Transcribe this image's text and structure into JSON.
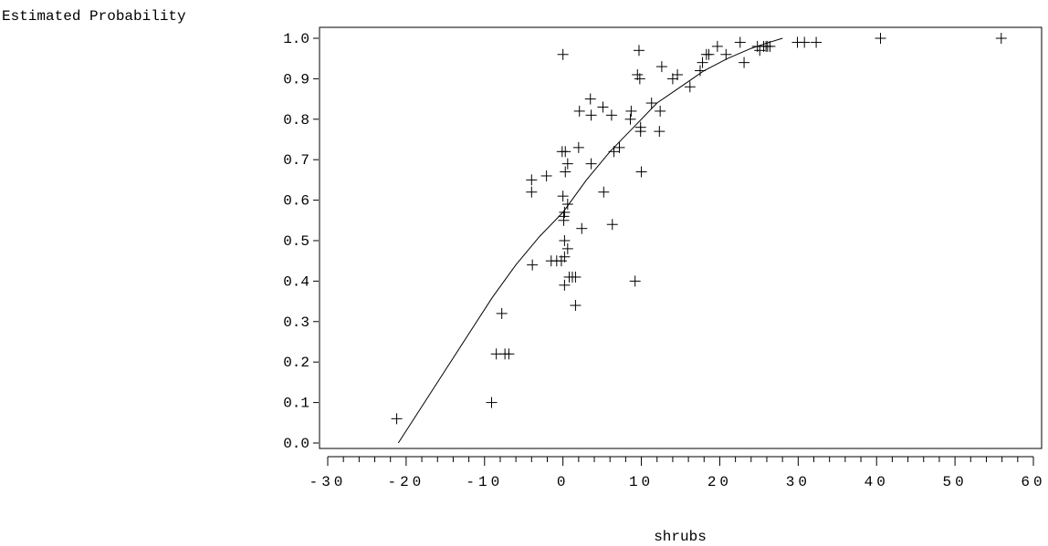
{
  "chart_data": {
    "type": "scatter",
    "title": "",
    "xlabel": "shrubs",
    "ylabel": "Estimated Probability",
    "xlim": [
      -30,
      60
    ],
    "ylim": [
      0.0,
      1.0
    ],
    "x_ticks": [
      -30,
      -20,
      -10,
      0,
      10,
      20,
      30,
      40,
      50,
      60
    ],
    "x_tick_labels": [
      "-30",
      "-20",
      "-10",
      "0",
      "10",
      "20",
      "30",
      "40",
      "50",
      "60"
    ],
    "x_minor_step": 2,
    "y_ticks": [
      0.0,
      0.1,
      0.2,
      0.3,
      0.4,
      0.5,
      0.6,
      0.7,
      0.8,
      0.9,
      1.0
    ],
    "y_tick_labels": [
      "0.0",
      "0.1",
      "0.2",
      "0.3",
      "0.4",
      "0.5",
      "0.6",
      "0.7",
      "0.8",
      "0.9",
      "1.0"
    ],
    "grid": false,
    "legend": "none",
    "colors": {
      "marks": "#000000",
      "background": "#ffffff"
    },
    "series": [
      {
        "kind": "points",
        "marker": "plus",
        "points": [
          [
            -21.2,
            0.06
          ],
          [
            -9.1,
            0.1
          ],
          [
            -8.5,
            0.22
          ],
          [
            -7.8,
            0.32
          ],
          [
            -7.4,
            0.22
          ],
          [
            -6.9,
            0.22
          ],
          [
            -4.0,
            0.62
          ],
          [
            -4.0,
            0.65
          ],
          [
            -3.9,
            0.44
          ],
          [
            -2.1,
            0.66
          ],
          [
            -1.5,
            0.45
          ],
          [
            -0.8,
            0.45
          ],
          [
            -0.2,
            0.45
          ],
          [
            -0.1,
            0.72
          ],
          [
            0.0,
            0.96
          ],
          [
            0.0,
            0.61
          ],
          [
            0.1,
            0.55
          ],
          [
            0.1,
            0.56
          ],
          [
            0.2,
            0.57
          ],
          [
            0.2,
            0.5
          ],
          [
            0.2,
            0.46
          ],
          [
            0.2,
            0.39
          ],
          [
            0.3,
            0.72
          ],
          [
            0.3,
            0.67
          ],
          [
            0.6,
            0.69
          ],
          [
            0.6,
            0.59
          ],
          [
            0.6,
            0.48
          ],
          [
            0.8,
            0.41
          ],
          [
            1.2,
            0.41
          ],
          [
            1.6,
            0.34
          ],
          [
            1.6,
            0.41
          ],
          [
            2.0,
            0.73
          ],
          [
            2.1,
            0.82
          ],
          [
            2.4,
            0.53
          ],
          [
            3.5,
            0.85
          ],
          [
            3.6,
            0.81
          ],
          [
            3.6,
            0.69
          ],
          [
            5.1,
            0.83
          ],
          [
            5.2,
            0.62
          ],
          [
            6.2,
            0.81
          ],
          [
            6.3,
            0.54
          ],
          [
            6.5,
            0.72
          ],
          [
            7.2,
            0.73
          ],
          [
            8.6,
            0.8
          ],
          [
            8.7,
            0.82
          ],
          [
            9.2,
            0.4
          ],
          [
            9.5,
            0.91
          ],
          [
            9.7,
            0.97
          ],
          [
            9.8,
            0.9
          ],
          [
            9.9,
            0.77
          ],
          [
            9.9,
            0.78
          ],
          [
            10.0,
            0.67
          ],
          [
            11.3,
            0.84
          ],
          [
            12.3,
            0.77
          ],
          [
            12.4,
            0.82
          ],
          [
            12.6,
            0.93
          ],
          [
            14.0,
            0.9
          ],
          [
            14.6,
            0.91
          ],
          [
            16.2,
            0.88
          ],
          [
            17.5,
            0.92
          ],
          [
            17.8,
            0.94
          ],
          [
            18.3,
            0.96
          ],
          [
            18.6,
            0.96
          ],
          [
            19.7,
            0.98
          ],
          [
            20.8,
            0.96
          ],
          [
            22.6,
            0.99
          ],
          [
            23.1,
            0.94
          ],
          [
            24.8,
            0.98
          ],
          [
            25.1,
            0.97
          ],
          [
            25.6,
            0.98
          ],
          [
            25.9,
            0.98
          ],
          [
            26.1,
            0.98
          ],
          [
            26.4,
            0.98
          ],
          [
            29.9,
            0.99
          ],
          [
            30.8,
            0.99
          ],
          [
            32.3,
            0.99
          ],
          [
            40.5,
            1.0
          ],
          [
            55.9,
            1.0
          ]
        ]
      },
      {
        "kind": "line",
        "points": [
          [
            -21.0,
            0.0
          ],
          [
            -18.0,
            0.09
          ],
          [
            -15.0,
            0.18
          ],
          [
            -12.0,
            0.27
          ],
          [
            -9.0,
            0.36
          ],
          [
            -6.0,
            0.44
          ],
          [
            -3.0,
            0.51
          ],
          [
            0.0,
            0.57
          ],
          [
            3.0,
            0.65
          ],
          [
            6.0,
            0.72
          ],
          [
            9.0,
            0.78
          ],
          [
            12.0,
            0.84
          ],
          [
            15.0,
            0.88
          ],
          [
            18.0,
            0.92
          ],
          [
            21.0,
            0.95
          ],
          [
            24.0,
            0.975
          ],
          [
            26.0,
            0.988
          ],
          [
            28.0,
            1.0
          ]
        ]
      }
    ]
  }
}
